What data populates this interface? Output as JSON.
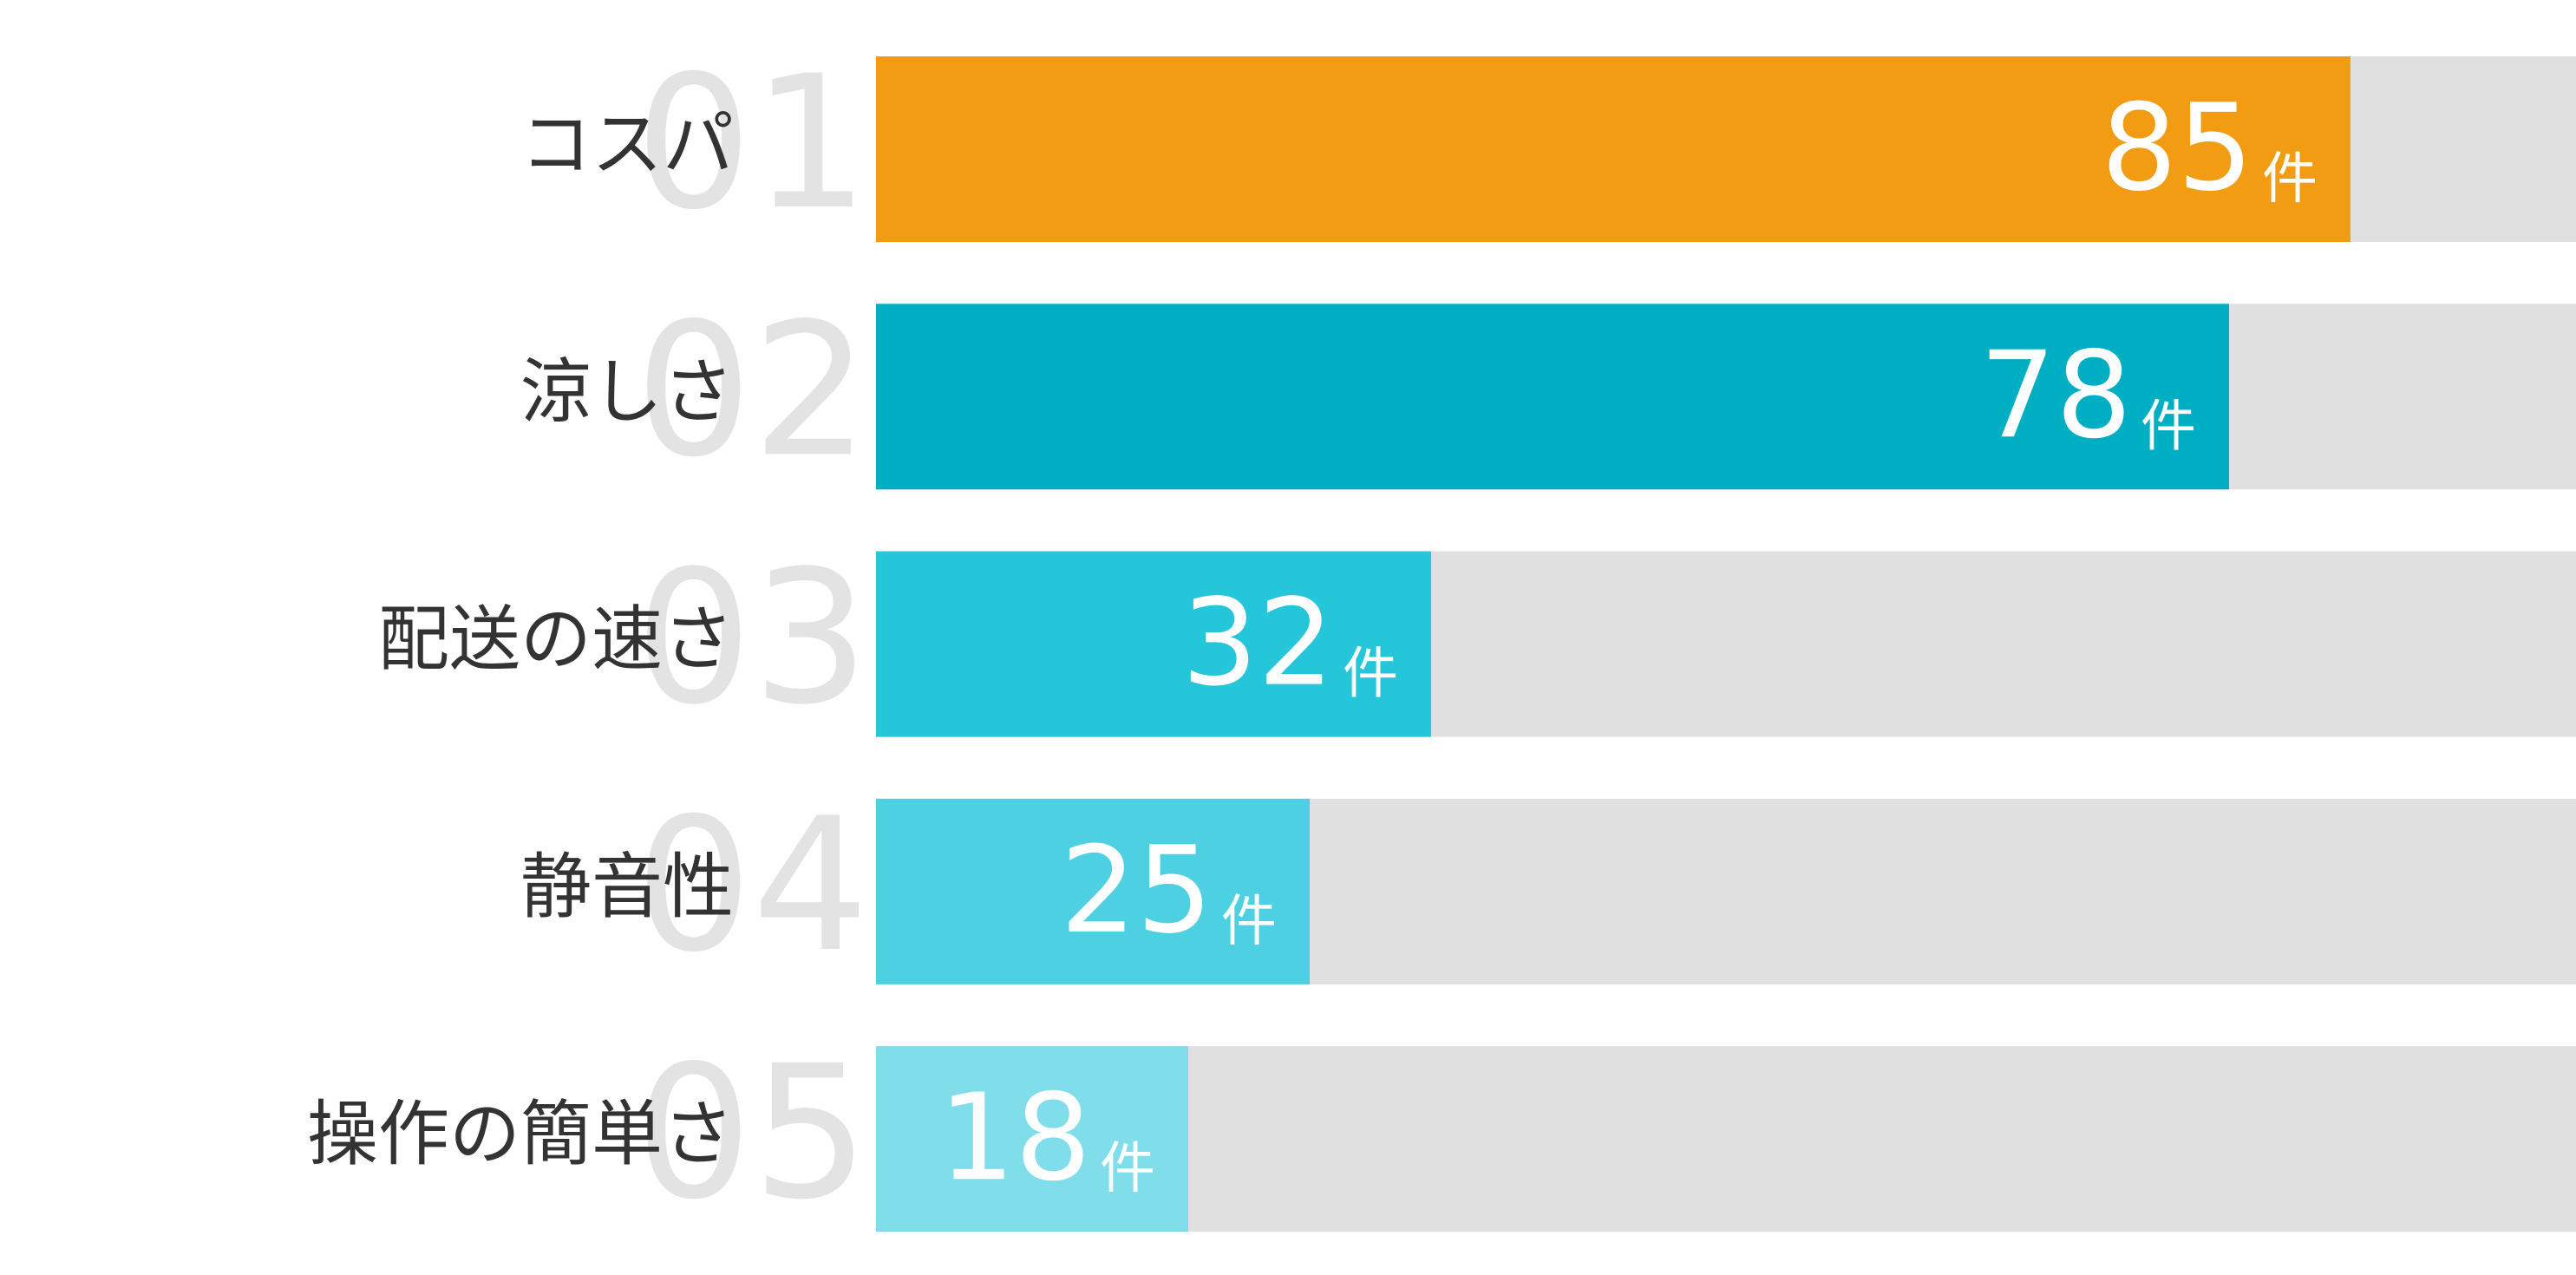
{
  "chart_data": {
    "type": "bar",
    "orientation": "horizontal",
    "categories": [
      "コスパ",
      "涼しさ",
      "配送の速さ",
      "静音性",
      "操作の簡単さ"
    ],
    "ranks": [
      "01",
      "02",
      "03",
      "04",
      "05"
    ],
    "values": [
      85,
      78,
      32,
      25,
      18
    ],
    "unit": "件",
    "colors": [
      "#f29c14",
      "#00aec4",
      "#26c6da",
      "#4dd0e1",
      "#80deea"
    ],
    "track_color": "#e0e0e0",
    "xlim": [
      0,
      98
    ]
  }
}
